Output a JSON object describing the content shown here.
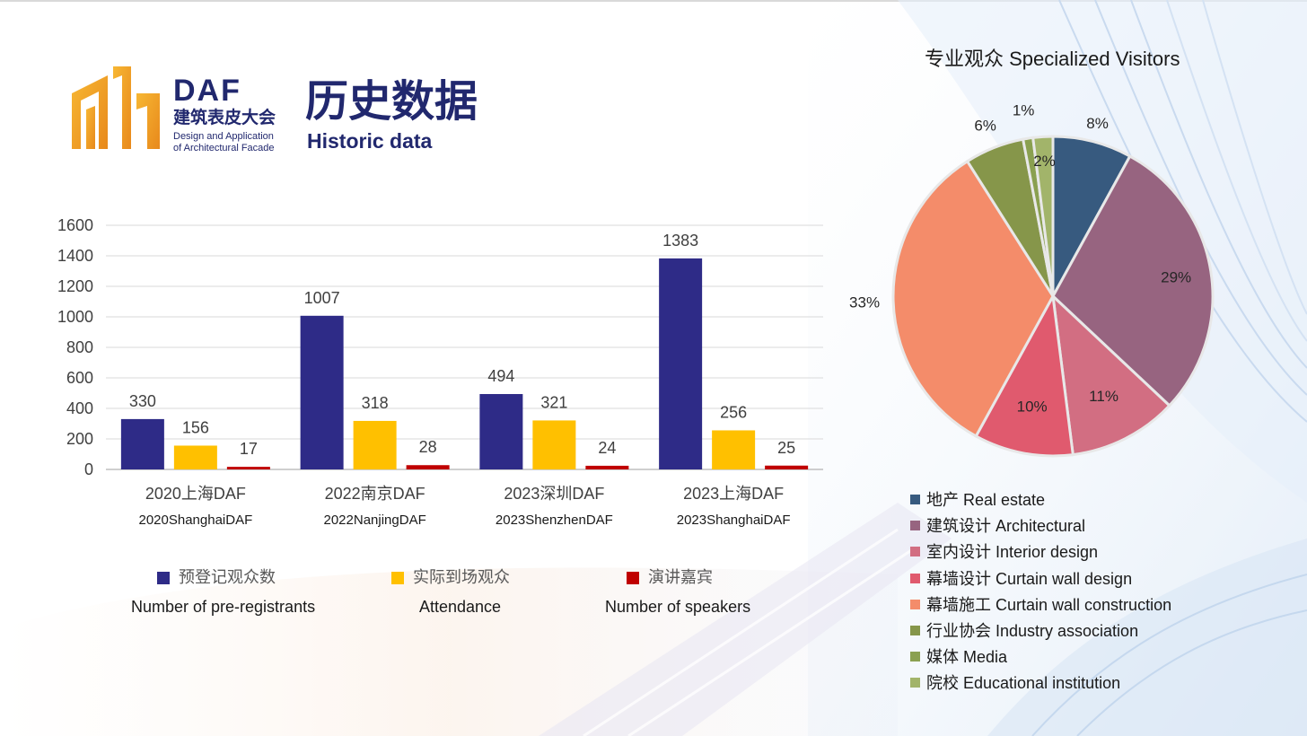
{
  "logo": {
    "name": "DAF",
    "cn": "建筑表皮大会",
    "en_line1": "Design and Application",
    "en_line2": "of Architectural Facade"
  },
  "title": {
    "cn": "历史数据",
    "en": "Historic data"
  },
  "colors": {
    "navy": "#21286e",
    "pre_registrants": "#2e2b87",
    "attendance": "#ffc000",
    "speakers": "#c00000",
    "logo_orange": "#f5a623"
  },
  "legend_bar": [
    {
      "cn": "预登记观众数",
      "en": "Number of pre-registrants",
      "color": "#2e2b87"
    },
    {
      "cn": "实际到场观众",
      "en": "Attendance",
      "color": "#ffc000"
    },
    {
      "cn": "演讲嘉宾",
      "en": "Number of speakers",
      "color": "#c00000"
    }
  ],
  "pie": {
    "title": "专业观众 Specialized Visitors"
  },
  "pie_legend": [
    {
      "label": "地产 Real estate",
      "color": "#375a7f"
    },
    {
      "label": "建筑设计 Architectural",
      "color": "#976480"
    },
    {
      "label": "室内设计 Interior design",
      "color": "#d26e82"
    },
    {
      "label": "幕墙设计 Curtain wall design",
      "color": "#e05a6e"
    },
    {
      "label": "幕墙施工 Curtain wall construction",
      "color": "#f48c6a"
    },
    {
      "label": "行业协会 Industry association",
      "color": "#86964a"
    },
    {
      "label": "媒体 Media",
      "color": "#8aa050"
    },
    {
      "label": "院校 Educational institution",
      "color": "#a2b46a"
    }
  ],
  "chart_data": [
    {
      "type": "bar",
      "categories": [
        "2020上海DAF",
        "2022南京DAF",
        "2023深圳DAF",
        "2023上海DAF"
      ],
      "categories_en": [
        "2020ShanghaiDAF",
        "2022NanjingDAF",
        "2023ShenzhenDAF",
        "2023ShanghaiDAF"
      ],
      "series": [
        {
          "name": "预登记观众数 Number of pre-registrants",
          "values": [
            330,
            1007,
            494,
            1383
          ],
          "color": "#2e2b87"
        },
        {
          "name": "实际到场观众 Attendance",
          "values": [
            156,
            318,
            321,
            256
          ],
          "color": "#ffc000"
        },
        {
          "name": "演讲嘉宾 Number of speakers",
          "values": [
            17,
            28,
            24,
            25
          ],
          "color": "#c00000"
        }
      ],
      "yticks": [
        0,
        200,
        400,
        600,
        800,
        1000,
        1200,
        1400,
        1600
      ],
      "ylim": [
        0,
        1600
      ],
      "grid": true,
      "legend": "bottom"
    },
    {
      "type": "pie",
      "title": "专业观众 Specialized Visitors",
      "labels": [
        "地产 Real estate",
        "建筑设计 Architectural",
        "室内设计 Interior design",
        "幕墙设计 Curtain wall design",
        "幕墙施工 Curtain wall construction",
        "行业协会 Industry association",
        "媒体 Media",
        "院校 Educational institution"
      ],
      "values": [
        8,
        29,
        11,
        10,
        33,
        6,
        1,
        2
      ],
      "value_labels": [
        "8%",
        "29%",
        "11%",
        "10%",
        "33%",
        "6%",
        "1%",
        "2%"
      ],
      "colors": [
        "#375a7f",
        "#976480",
        "#d26e82",
        "#e05a6e",
        "#f48c6a",
        "#86964a",
        "#8aa050",
        "#a2b46a"
      ],
      "legend": "bottom"
    }
  ]
}
